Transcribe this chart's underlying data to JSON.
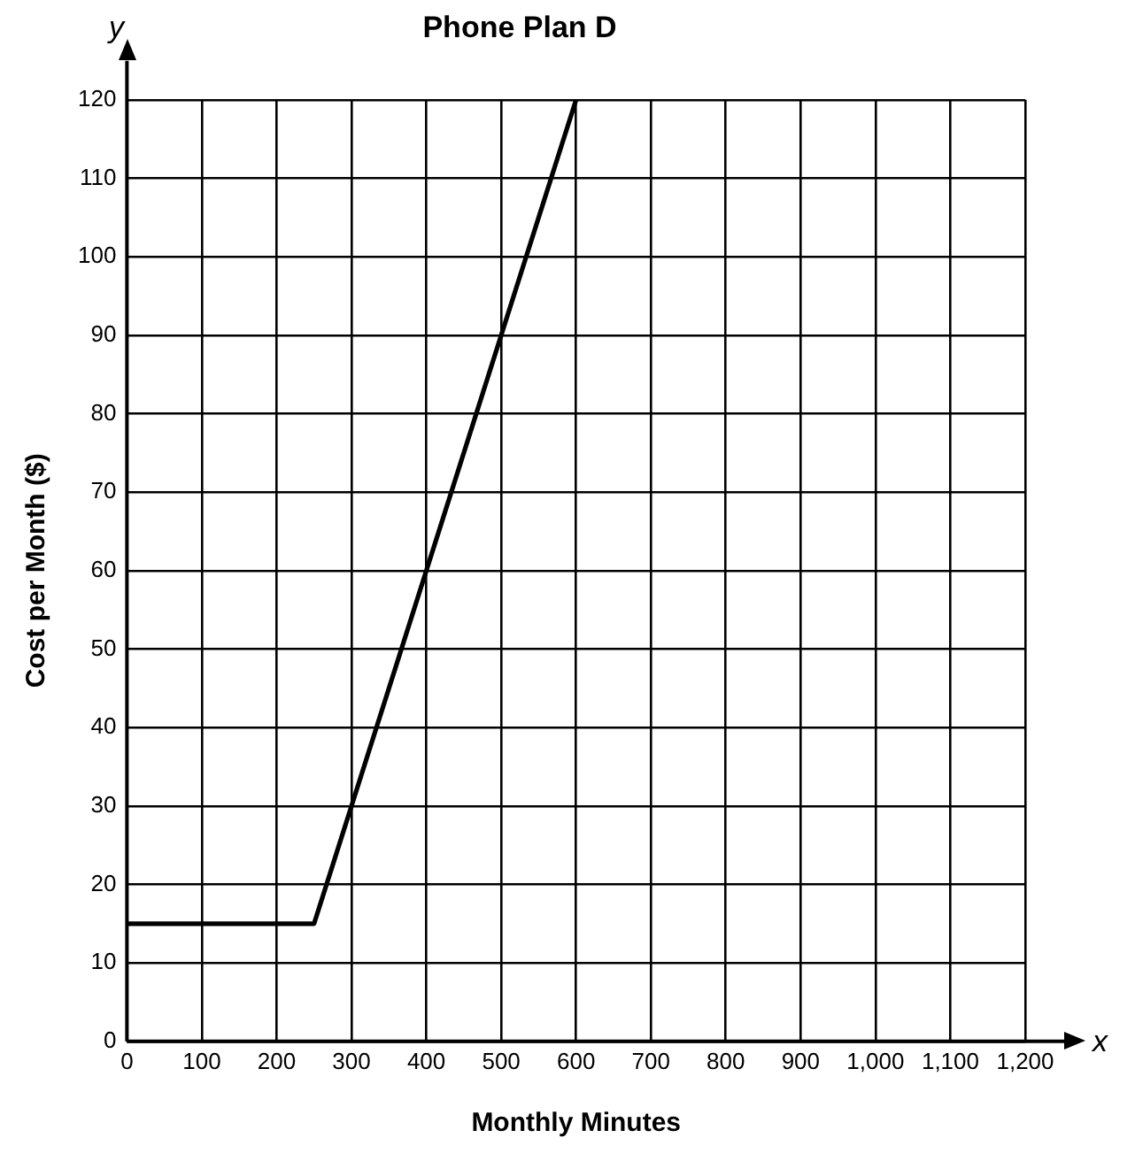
{
  "chart_data": {
    "type": "line",
    "title": "Phone Plan D",
    "xlabel": "Monthly Minutes",
    "ylabel": "Cost per Month ($)",
    "annotations": [
      "y",
      "x"
    ],
    "x": [
      0,
      250,
      300,
      400,
      500,
      600
    ],
    "series": [
      {
        "color": "#000000",
        "values": [
          15,
          15,
          30,
          60,
          90,
          120
        ]
      }
    ],
    "xlim": [
      0,
      1200
    ],
    "xticks": [
      0,
      100,
      200,
      300,
      400,
      500,
      600,
      700,
      800,
      900,
      {
        "value": 1000,
        "label": "1,000"
      },
      {
        "value": 1100,
        "label": "1,100"
      },
      {
        "value": 1200,
        "label": "1,200"
      }
    ],
    "ylim": [
      0,
      120
    ],
    "yticks": [
      0,
      10,
      20,
      30,
      40,
      50,
      60,
      70,
      80,
      90,
      100,
      110,
      120
    ],
    "grid": true,
    "legend": false,
    "marker": "none",
    "line_style": "solid"
  }
}
